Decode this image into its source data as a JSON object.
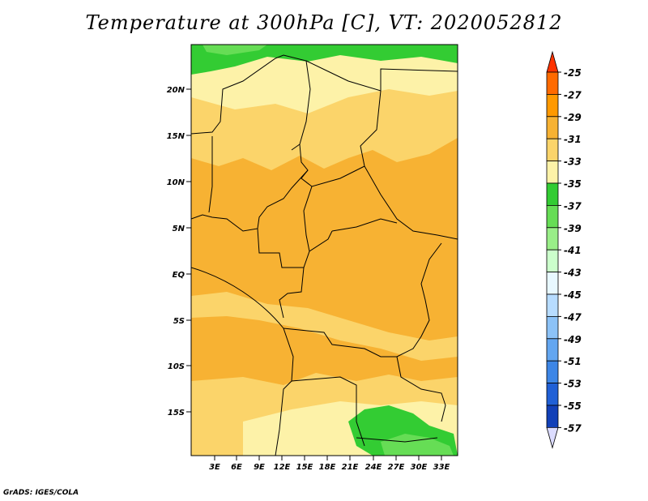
{
  "title": "Temperature at 300hPa [C], VT: 2020052812",
  "credit": "GrADS: IGES/COLA",
  "map": {
    "lat_labels": [
      "20N",
      "15N",
      "10N",
      "5N",
      "EQ",
      "5S",
      "10S",
      "15S"
    ],
    "lon_labels": [
      "3E",
      "6E",
      "9E",
      "12E",
      "15E",
      "18E",
      "21E",
      "24E",
      "27E",
      "30E",
      "33E"
    ]
  },
  "colorbar": {
    "labels": [
      "-25",
      "-27",
      "-29",
      "-31",
      "-33",
      "-35",
      "-37",
      "-39",
      "-41",
      "-43",
      "-45",
      "-47",
      "-49",
      "-51",
      "-53",
      "-55",
      "-57"
    ],
    "colors": [
      "#ff3300",
      "#ff6a00",
      "#ff9900",
      "#f7b233",
      "#fbd46a",
      "#fdf2a8",
      "#33cc33",
      "#66dd55",
      "#99ee88",
      "#ccffcc",
      "#e8f8ff",
      "#b7dcff",
      "#8cc2f7",
      "#63a6f0",
      "#3d86e6",
      "#2060d6",
      "#1240b8",
      "#0a1f8c",
      "#000066",
      "#dcdcff"
    ]
  }
}
